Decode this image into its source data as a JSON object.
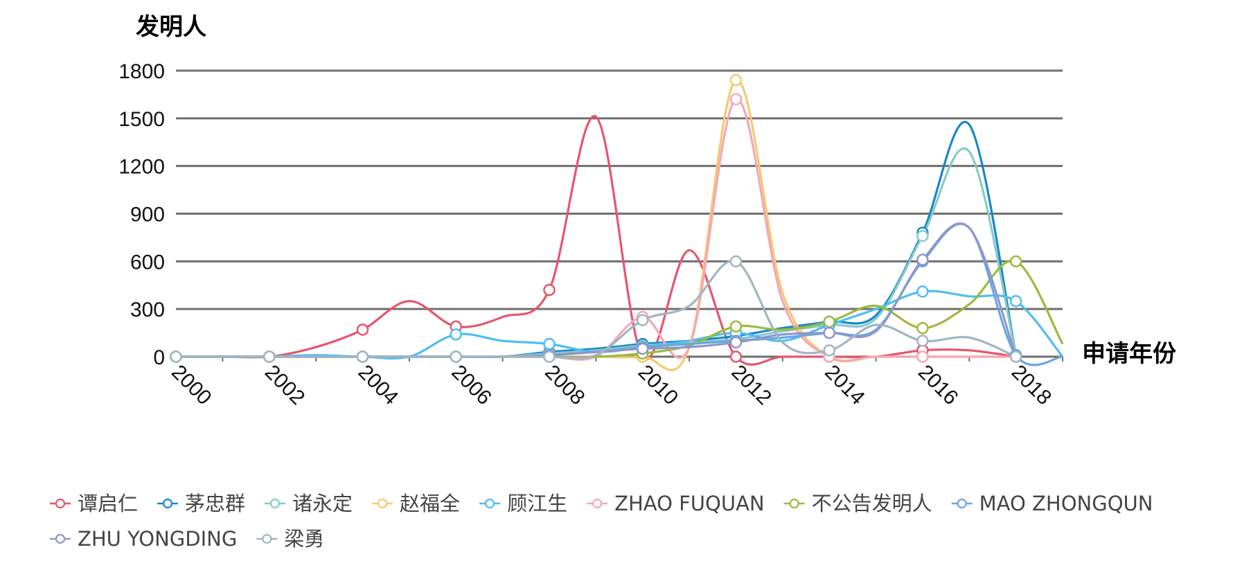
{
  "chart_data": {
    "type": "line",
    "ylabel": "发明人",
    "xlabel": "申请年份",
    "ylim": [
      0,
      1800
    ],
    "yticks": [
      0,
      300,
      600,
      900,
      1200,
      1500,
      1800
    ],
    "x": [
      2000,
      2001,
      2002,
      2003,
      2004,
      2005,
      2006,
      2007,
      2008,
      2009,
      2010,
      2011,
      2012,
      2013,
      2014,
      2015,
      2016,
      2017,
      2018,
      2019
    ],
    "xticks": [
      "2000",
      "2002",
      "2004",
      "2006",
      "2008",
      "2010",
      "2012",
      "2014",
      "2016",
      "2018"
    ],
    "grid": true,
    "legend_position": "bottom",
    "series": [
      {
        "name": "谭启仁",
        "color": "#e8546b",
        "values": [
          0,
          0,
          0,
          60,
          170,
          350,
          190,
          250,
          420,
          1510,
          0,
          670,
          0,
          0,
          0,
          0,
          40,
          40,
          0,
          null
        ]
      },
      {
        "name": "茅忠群",
        "color": "#1a86c8",
        "values": [
          0,
          0,
          0,
          0,
          0,
          0,
          0,
          0,
          30,
          50,
          80,
          100,
          130,
          180,
          220,
          260,
          780,
          1460,
          10,
          null
        ]
      },
      {
        "name": "诸永定",
        "color": "#86cbc9",
        "values": [
          0,
          0,
          0,
          0,
          0,
          0,
          0,
          0,
          20,
          40,
          70,
          90,
          110,
          160,
          200,
          240,
          760,
          1290,
          10,
          null
        ]
      },
      {
        "name": "赵福全",
        "color": "#f5c96f",
        "values": [
          0,
          0,
          0,
          0,
          0,
          0,
          0,
          0,
          0,
          0,
          0,
          60,
          1740,
          400,
          0,
          0,
          0,
          0,
          0,
          null
        ]
      },
      {
        "name": "顾江生",
        "color": "#4cbef2",
        "values": [
          0,
          0,
          0,
          10,
          0,
          0,
          140,
          100,
          80,
          30,
          60,
          100,
          150,
          100,
          200,
          300,
          410,
          380,
          350,
          0
        ]
      },
      {
        "name": "ZHAO FUQUAN",
        "color": "#f4a7b6",
        "values": [
          0,
          0,
          0,
          0,
          0,
          0,
          0,
          0,
          0,
          0,
          250,
          60,
          1620,
          350,
          0,
          0,
          0,
          0,
          0,
          null
        ]
      },
      {
        "name": "不公告发明人",
        "color": "#9cb93a",
        "values": [
          0,
          0,
          0,
          0,
          0,
          0,
          0,
          0,
          0,
          0,
          20,
          70,
          190,
          170,
          220,
          320,
          180,
          330,
          600,
          80
        ]
      },
      {
        "name": "MAO ZHONGQUN",
        "color": "#6aa7dc",
        "values": [
          0,
          0,
          0,
          0,
          0,
          0,
          0,
          0,
          10,
          30,
          60,
          80,
          100,
          120,
          150,
          170,
          600,
          810,
          10,
          0
        ]
      },
      {
        "name": "ZHU YONGDING",
        "color": "#8e96cc",
        "values": [
          0,
          0,
          0,
          0,
          0,
          0,
          0,
          0,
          10,
          30,
          50,
          60,
          90,
          140,
          150,
          160,
          610,
          810,
          0,
          null
        ]
      },
      {
        "name": "梁勇",
        "color": "#9fb5c4",
        "values": [
          0,
          0,
          0,
          0,
          0,
          0,
          0,
          0,
          0,
          10,
          230,
          320,
          600,
          90,
          40,
          200,
          100,
          120,
          0,
          null
        ]
      }
    ]
  }
}
